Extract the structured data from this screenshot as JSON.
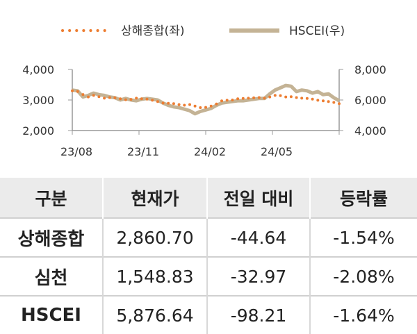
{
  "chart_data": {
    "type": "line",
    "legend_placement": "top",
    "x_tick_labels": [
      "23/08",
      "23/11",
      "24/02",
      "24/05"
    ],
    "y_left": {
      "range": [
        2000,
        4000
      ],
      "ticks": [
        "2,000",
        "3,000",
        "4,000"
      ]
    },
    "y_right": {
      "range": [
        4000,
        8000
      ],
      "ticks": [
        "4,000",
        "6,000",
        "8,000"
      ]
    },
    "grid": false,
    "series": [
      {
        "name": "상해종합(좌)",
        "axis": "left",
        "style": "dotted",
        "color": "#ED7D31",
        "values": [
          3300,
          3280,
          3180,
          3100,
          3150,
          3110,
          3060,
          3080,
          3070,
          3040,
          3010,
          3020,
          3060,
          3040,
          3030,
          2990,
          2950,
          2900,
          2890,
          2880,
          2850,
          2830,
          2850,
          2800,
          2750,
          2760,
          2800,
          2870,
          2970,
          2990,
          3000,
          3040,
          3050,
          3060,
          3070,
          3080,
          3060,
          3100,
          3150,
          3140,
          3100,
          3110,
          3080,
          3060,
          3050,
          3030,
          2990,
          2970,
          2950,
          2920,
          2880
        ]
      },
      {
        "name": "HSCEI(우)",
        "axis": "right",
        "style": "solid",
        "color": "#C4B395",
        "values": [
          6650,
          6600,
          6200,
          6300,
          6450,
          6350,
          6300,
          6200,
          6150,
          6000,
          6100,
          6000,
          5950,
          6050,
          6100,
          6050,
          6000,
          5800,
          5650,
          5550,
          5500,
          5400,
          5300,
          5100,
          5250,
          5350,
          5450,
          5650,
          5800,
          5850,
          5900,
          5950,
          5950,
          6000,
          6050,
          6100,
          6100,
          6400,
          6650,
          6800,
          6950,
          6900,
          6550,
          6650,
          6600,
          6450,
          6550,
          6350,
          6400,
          6150,
          5950
        ]
      }
    ]
  },
  "table": {
    "headers": [
      "구분",
      "현재가",
      "전일 대비",
      "등락률"
    ],
    "rows": [
      {
        "name": "상해종합",
        "price": "2,860.70",
        "change": "-44.64",
        "rate": "-1.54%"
      },
      {
        "name": "심천",
        "price": "1,548.83",
        "change": "-32.97",
        "rate": "-2.08%"
      },
      {
        "name": "HSCEI",
        "price": "5,876.64",
        "change": "-98.21",
        "rate": "-1.64%"
      }
    ]
  }
}
